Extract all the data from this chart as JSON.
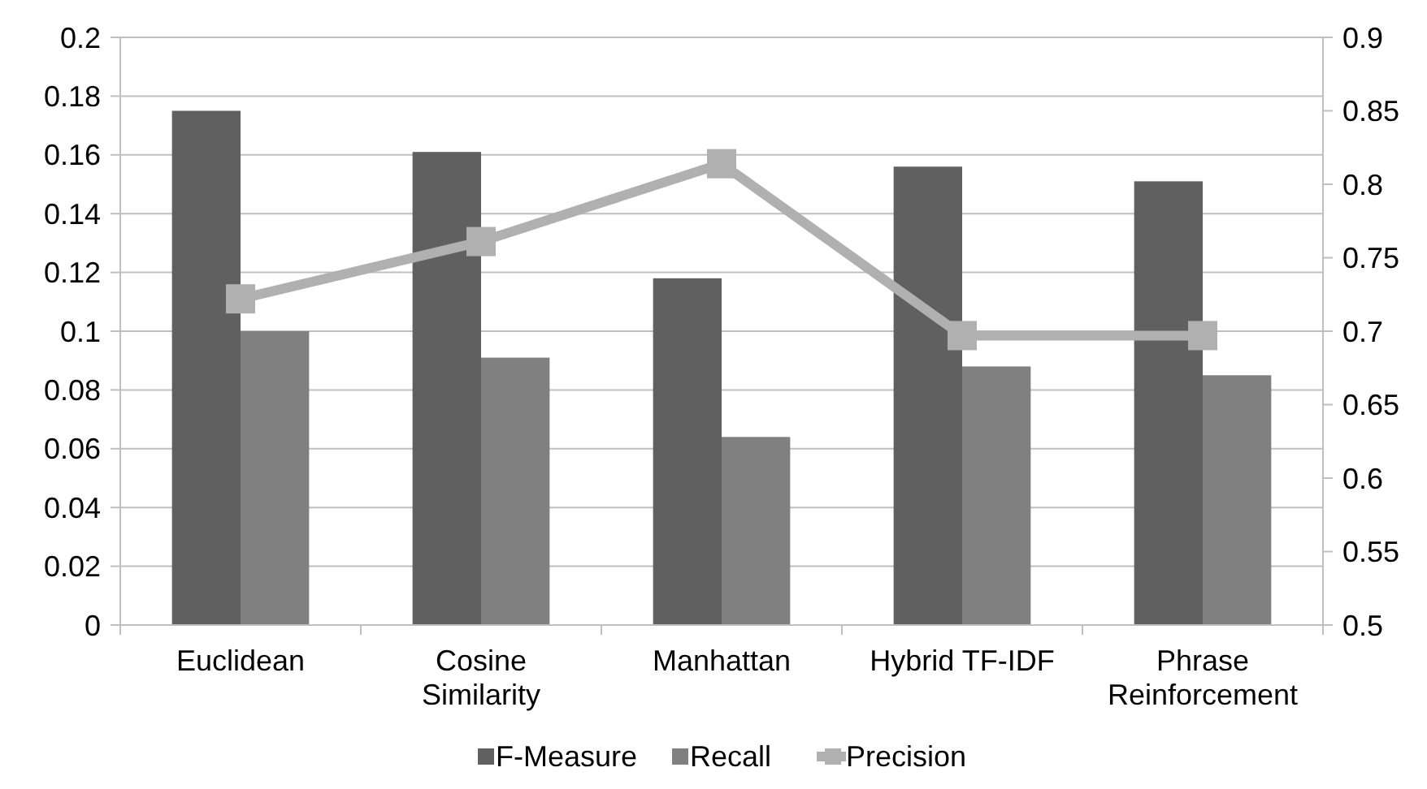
{
  "chart_data": {
    "type": "bar",
    "categories": [
      "Euclidean",
      "Cosine Similarity",
      "Manhattan",
      "Hybrid TF-IDF",
      "Phrase Reinforcement"
    ],
    "series": [
      {
        "name": "F-Measure",
        "color": "#606060",
        "values": [
          0.175,
          0.161,
          0.118,
          0.156,
          0.151
        ]
      },
      {
        "name": "Recall",
        "color": "#808080",
        "values": [
          0.1,
          0.091,
          0.064,
          0.088,
          0.085
        ]
      },
      {
        "name": "Precision",
        "type": "line",
        "axis": "y2",
        "color": "#b0b0b0",
        "marker": "square",
        "values": [
          0.722,
          0.761,
          0.814,
          0.697,
          0.697
        ]
      }
    ],
    "ylim": [
      0,
      0.2
    ],
    "yticks": [
      0,
      0.02,
      0.04,
      0.06,
      0.08,
      0.1,
      0.12,
      0.14,
      0.16,
      0.18,
      0.2
    ],
    "y2lim": [
      0.5,
      0.9
    ],
    "y2ticks": [
      0.5,
      0.55,
      0.6,
      0.65,
      0.7,
      0.75,
      0.8,
      0.85,
      0.9
    ],
    "grid": "y",
    "legend": "bottom"
  }
}
